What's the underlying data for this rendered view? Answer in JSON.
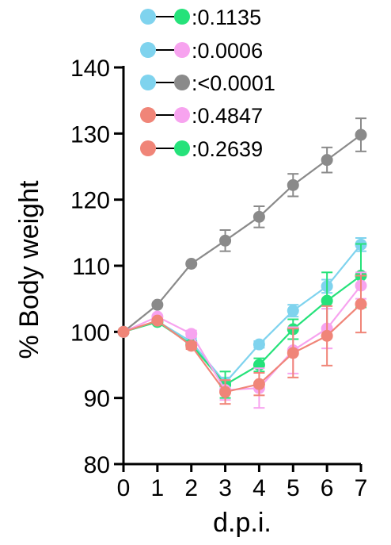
{
  "chart_data": {
    "type": "line",
    "xlabel": "d.p.i.",
    "ylabel": "% Body weight",
    "x": [
      0,
      1,
      2,
      3,
      4,
      5,
      6,
      7
    ],
    "xlim": [
      0,
      7
    ],
    "ylim": [
      80,
      140
    ],
    "xticks": [
      "0",
      "1",
      "2",
      "3",
      "4",
      "5",
      "6",
      "7"
    ],
    "yticks": [
      "80",
      "90",
      "100",
      "110",
      "120",
      "130",
      "140"
    ],
    "grid": false,
    "legend_placement": "top-left",
    "series": [
      {
        "color": "#8a8a8a",
        "values": [
          100,
          104.1,
          110.3,
          113.8,
          117.4,
          122.2,
          126.0,
          129.8
        ],
        "errors": [
          0,
          0,
          0,
          1.6,
          1.6,
          1.7,
          1.9,
          2.5
        ]
      },
      {
        "color": "#7fd3ee",
        "values": [
          100,
          101.6,
          98.5,
          92.3,
          98.1,
          103.2,
          106.9,
          113.2
        ],
        "errors": [
          0,
          0,
          0.6,
          0.8,
          0.5,
          0.9,
          1.0,
          1.0
        ]
      },
      {
        "color": "#25e27a",
        "values": [
          100,
          101.5,
          98.1,
          92.0,
          95.0,
          100.4,
          104.7,
          108.5
        ],
        "errors": [
          0,
          0,
          0.5,
          2.0,
          1.0,
          1.5,
          4.3,
          4.8
        ]
      },
      {
        "color": "#f7a3ef",
        "values": [
          100,
          102.3,
          99.7,
          91.2,
          91.5,
          97.2,
          100.5,
          107.0
        ],
        "errors": [
          0,
          0,
          0.5,
          1.5,
          3.0,
          3.5,
          3.0,
          2.0
        ]
      },
      {
        "color": "#f08578",
        "values": [
          100,
          101.7,
          97.9,
          90.9,
          92.1,
          96.8,
          99.4,
          104.2
        ],
        "errors": [
          0,
          0,
          0.5,
          1.8,
          1.7,
          3.7,
          4.5,
          4.3
        ]
      }
    ],
    "legend": [
      {
        "left_color": "#7fd3ee",
        "right_color": "#25e27a",
        "text": ":0.1135"
      },
      {
        "left_color": "#7fd3ee",
        "right_color": "#f7a3ef",
        "text": ":0.0006"
      },
      {
        "left_color": "#7fd3ee",
        "right_color": "#8a8a8a",
        "text": ":<0.0001"
      },
      {
        "left_color": "#f08578",
        "right_color": "#f7a3ef",
        "text": ":0.4847"
      },
      {
        "left_color": "#f08578",
        "right_color": "#25e27a",
        "text": ":0.2639"
      }
    ]
  }
}
